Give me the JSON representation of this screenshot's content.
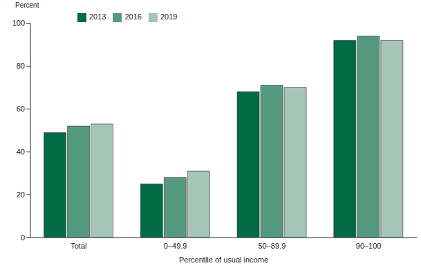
{
  "chart_data": {
    "type": "bar",
    "y_label": "Percent",
    "x_label": "Percentile of usual income",
    "categories": [
      "Total",
      "0–49.9",
      "50–89.9",
      "90–100"
    ],
    "series": [
      {
        "name": "2013",
        "color": "#006b45",
        "values": [
          49,
          25,
          68,
          92
        ]
      },
      {
        "name": "2016",
        "color": "#559a80",
        "values": [
          52,
          28,
          71,
          94
        ]
      },
      {
        "name": "2019",
        "color": "#a6c4b8",
        "values": [
          53,
          31,
          70,
          92
        ]
      }
    ],
    "ylim": [
      0,
      100
    ],
    "yticks": [
      0,
      20,
      40,
      60,
      80,
      100
    ],
    "grid": false,
    "legend": "top"
  }
}
